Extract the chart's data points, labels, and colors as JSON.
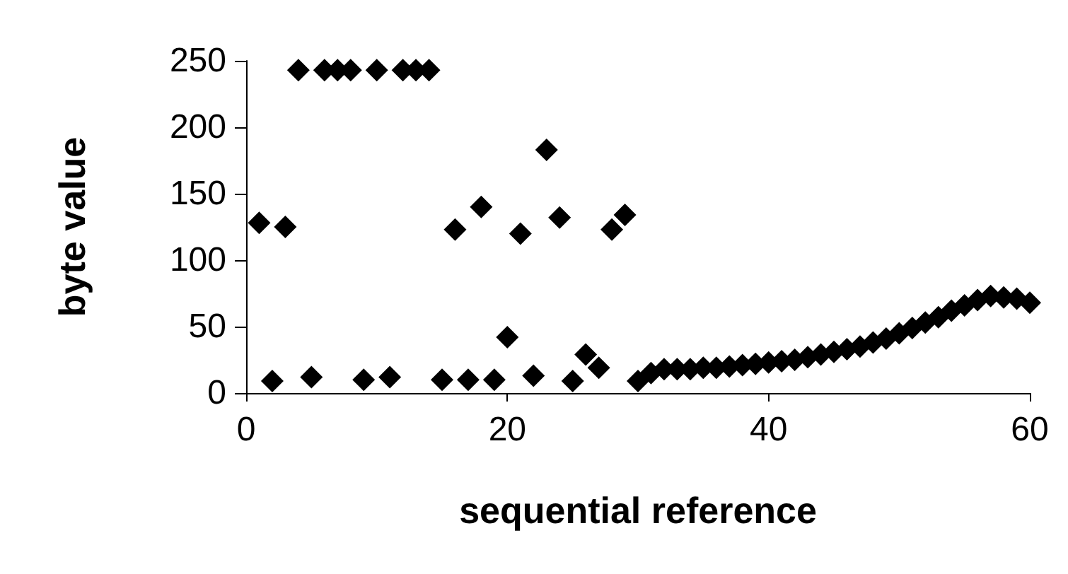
{
  "chart_data": {
    "type": "scatter",
    "xlabel": "sequential reference",
    "ylabel": "byte value",
    "marker": "diamond",
    "grid": false,
    "xlim": [
      0,
      60
    ],
    "xticks": [
      0,
      20,
      40,
      60
    ],
    "ylim": [
      0,
      250
    ],
    "yticks": [
      0,
      50,
      100,
      150,
      200,
      250
    ],
    "series": [
      {
        "color": "#000000",
        "x": [
          1,
          2,
          3,
          4,
          5,
          6,
          7,
          8,
          9,
          10,
          11,
          12,
          13,
          14,
          15,
          16,
          17,
          18,
          19,
          20,
          21,
          22,
          23,
          24,
          25,
          26,
          27,
          28,
          29,
          30,
          31,
          32,
          33,
          34,
          35,
          36,
          37,
          38,
          39,
          40,
          41,
          42,
          43,
          44,
          45,
          46,
          47,
          48,
          49,
          50,
          51,
          52,
          53,
          54,
          55,
          56,
          57,
          58,
          59,
          60
        ],
        "values": [
          128,
          9,
          125,
          243,
          12,
          243,
          243,
          243,
          10,
          243,
          12,
          243,
          243,
          243,
          10,
          123,
          10,
          140,
          10,
          42,
          120,
          13,
          183,
          132,
          9,
          29,
          19,
          123,
          134,
          9,
          15,
          18,
          18,
          18,
          19,
          19,
          20,
          21,
          22,
          23,
          24,
          25,
          27,
          29,
          31,
          33,
          35,
          38,
          41,
          45,
          49,
          53,
          57,
          62,
          66,
          70,
          73,
          72,
          71,
          68
        ]
      }
    ]
  }
}
